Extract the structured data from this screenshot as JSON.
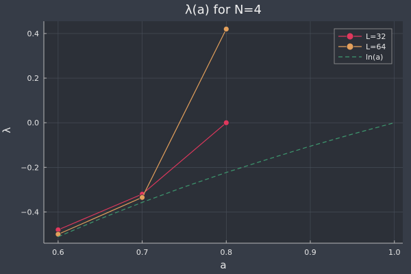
{
  "chart_data": {
    "type": "line",
    "title": "λ(a) for N=4",
    "xlabel": "a",
    "ylabel": "λ",
    "xlim": [
      0.583,
      1.01
    ],
    "ylim": [
      -0.54,
      0.455
    ],
    "xticks": [
      "0.6",
      "0.7",
      "0.8",
      "0.9",
      "1.0"
    ],
    "xtick_values": [
      0.6,
      0.7,
      0.8,
      0.9,
      1.0
    ],
    "yticks": [
      "−0.4",
      "−0.2",
      "0.0",
      "0.2",
      "0.4"
    ],
    "ytick_values": [
      -0.4,
      -0.2,
      0.0,
      0.2,
      0.4
    ],
    "grid": true,
    "legend_position": "top-right",
    "series": [
      {
        "name": "L=32",
        "color": "#e0385d",
        "style": "line-marker",
        "x": [
          0.6,
          0.7,
          0.8
        ],
        "y": [
          -0.48,
          -0.32,
          0.0
        ]
      },
      {
        "name": "L=64",
        "color": "#e3a05c",
        "style": "line-marker",
        "x": [
          0.6,
          0.7,
          0.8
        ],
        "y": [
          -0.5,
          -0.335,
          0.42
        ]
      },
      {
        "name": "ln(a)",
        "color": "#3e9a70",
        "style": "dashed",
        "x": [
          0.6,
          0.65,
          0.7,
          0.75,
          0.8,
          0.85,
          0.9,
          0.95,
          1.0
        ],
        "y": [
          -0.511,
          -0.431,
          -0.357,
          -0.288,
          -0.223,
          -0.163,
          -0.105,
          -0.051,
          0.0
        ]
      }
    ]
  }
}
